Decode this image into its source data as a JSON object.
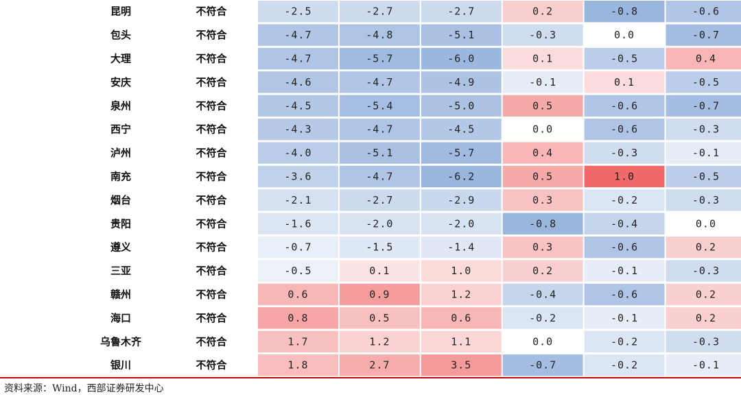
{
  "chart_data": {
    "type": "heatmap",
    "colors": {
      "negative": "#6f96cf",
      "positive": "#f06a6a",
      "neutral": "#ffffff"
    },
    "rows": [
      {
        "city": "昆明",
        "status": "不符合",
        "values": [
          -2.5,
          -2.7,
          -2.7,
          0.2,
          -0.8,
          -0.6
        ]
      },
      {
        "city": "包头",
        "status": "不符合",
        "values": [
          -4.7,
          -4.8,
          -5.1,
          -0.3,
          0.0,
          -0.7
        ]
      },
      {
        "city": "大理",
        "status": "不符合",
        "values": [
          -4.7,
          -5.7,
          -6.0,
          0.1,
          -0.5,
          0.4
        ]
      },
      {
        "city": "安庆",
        "status": "不符合",
        "values": [
          -4.6,
          -4.7,
          -4.9,
          -0.1,
          0.1,
          -0.5
        ]
      },
      {
        "city": "泉州",
        "status": "不符合",
        "values": [
          -4.5,
          -5.4,
          -5.0,
          0.5,
          -0.6,
          -0.7
        ]
      },
      {
        "city": "西宁",
        "status": "不符合",
        "values": [
          -4.3,
          -4.7,
          -4.5,
          0.0,
          -0.6,
          -0.3
        ]
      },
      {
        "city": "泸州",
        "status": "不符合",
        "values": [
          -4.0,
          -5.1,
          -5.7,
          0.4,
          -0.3,
          -0.1
        ]
      },
      {
        "city": "南充",
        "status": "不符合",
        "values": [
          -3.6,
          -4.7,
          -6.2,
          0.5,
          1.0,
          -0.5
        ]
      },
      {
        "city": "烟台",
        "status": "不符合",
        "values": [
          -2.1,
          -2.7,
          -2.9,
          0.3,
          -0.2,
          -0.3
        ]
      },
      {
        "city": "贵阳",
        "status": "不符合",
        "values": [
          -1.6,
          -2.0,
          -2.0,
          -0.8,
          -0.4,
          0.0
        ]
      },
      {
        "city": "遵义",
        "status": "不符合",
        "values": [
          -0.7,
          -1.5,
          -1.4,
          0.3,
          -0.6,
          0.2
        ]
      },
      {
        "city": "三亚",
        "status": "不符合",
        "values": [
          -0.5,
          0.1,
          1.0,
          0.2,
          -0.1,
          -0.3
        ]
      },
      {
        "city": "赣州",
        "status": "不符合",
        "values": [
          0.6,
          0.9,
          1.2,
          -0.4,
          -0.6,
          0.2
        ]
      },
      {
        "city": "海口",
        "status": "不符合",
        "values": [
          0.8,
          0.5,
          0.6,
          -0.2,
          -0.1,
          0.2
        ]
      },
      {
        "city": "乌鲁木齐",
        "status": "不符合",
        "values": [
          1.7,
          1.2,
          1.1,
          0.0,
          -0.2,
          -0.3
        ]
      },
      {
        "city": "银川",
        "status": "不符合",
        "values": [
          1.8,
          2.7,
          3.5,
          -0.7,
          -0.2,
          -0.1
        ]
      }
    ]
  },
  "footer": {
    "source": "资料来源：Wind，西部证券研发中心"
  }
}
